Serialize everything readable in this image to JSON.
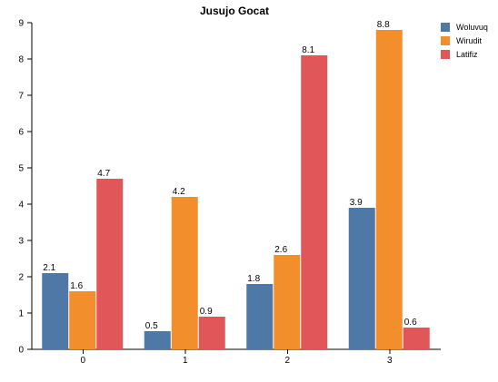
{
  "chart_data": {
    "type": "bar",
    "title": "Jusujo Gocat",
    "xlabel": "",
    "ylabel": "",
    "categories": [
      "0",
      "1",
      "2",
      "3"
    ],
    "series": [
      {
        "name": "Woluvuq",
        "color": "#4e79a7",
        "values": [
          2.1,
          0.5,
          1.8,
          3.9
        ]
      },
      {
        "name": "Wirudit",
        "color": "#f28e2b",
        "values": [
          1.6,
          4.2,
          2.6,
          8.8
        ]
      },
      {
        "name": "Latifiz",
        "color": "#e15759",
        "values": [
          4.7,
          0.9,
          8.1,
          0.6
        ]
      }
    ],
    "ylim": [
      0,
      9
    ],
    "yticks": [
      0,
      1,
      2,
      3,
      4,
      5,
      6,
      7,
      8,
      9
    ],
    "grid": false,
    "legend": "top-right"
  }
}
